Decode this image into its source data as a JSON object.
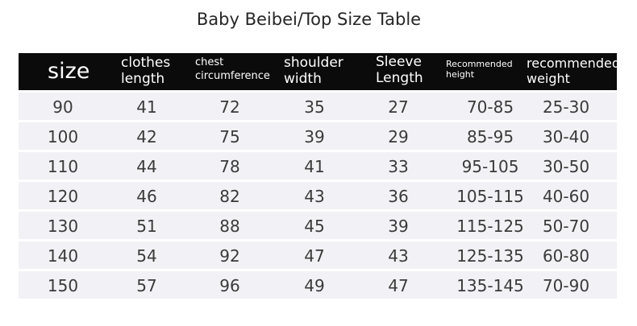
{
  "title": "Baby Beibei/Top Size Table",
  "headers": {
    "size": "size",
    "clothes": [
      "clothes",
      "length"
    ],
    "chest": [
      "chest",
      "circumference"
    ],
    "shoulder": [
      "shoulder",
      "width"
    ],
    "sleeve": [
      "Sleeve",
      "Length"
    ],
    "height": [
      "Recommended",
      "height"
    ],
    "weight": [
      "recommended",
      "weight"
    ]
  },
  "rows": [
    [
      "90",
      "41",
      "72",
      "35",
      "27",
      "70-85",
      "25-30"
    ],
    [
      "100",
      "42",
      "75",
      "39",
      "29",
      "85-95",
      "30-40"
    ],
    [
      "110",
      "44",
      "78",
      "41",
      "33",
      "95-105",
      "30-50"
    ],
    [
      "120",
      "46",
      "82",
      "43",
      "36",
      "105-115",
      "40-60"
    ],
    [
      "130",
      "51",
      "88",
      "45",
      "39",
      "115-125",
      "50-70"
    ],
    [
      "140",
      "54",
      "92",
      "47",
      "43",
      "125-135",
      "60-80"
    ],
    [
      "150",
      "57",
      "96",
      "49",
      "47",
      "135-145",
      "70-90"
    ]
  ]
}
